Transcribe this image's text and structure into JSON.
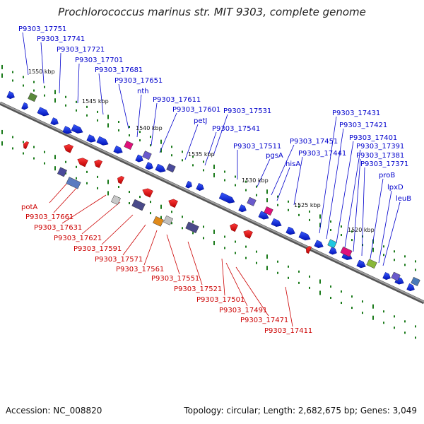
{
  "title": "Prochlorococcus marinus str. MIT 9303, complete genome",
  "accession_text": "Accession: NC_008820",
  "stats_text": "Topology: circular; Length: 2,682,675 bp; Genes: 3,049",
  "colors": {
    "forward_label": "#0000cc",
    "reverse_label": "#cc0000",
    "forward_gene": "#0a2ae8",
    "reverse_gene": "#e0001a",
    "backbone": "#8a8a8a",
    "tick_dots": "#1a7a1a"
  },
  "ticks": [
    "1550 kbp",
    "1545 kbp",
    "1540 kbp",
    "1535 kbp",
    "1530 kbp",
    "1525 kbp",
    "1520 kbp"
  ],
  "forward_labels": [
    "P9303_17751",
    "P9303_17741",
    "P9303_17721",
    "P9303_17701",
    "P9303_17681",
    "P9303_17651",
    "nth",
    "P9303_17611",
    "P9303_17601",
    "petJ",
    "P9303_17531",
    "P9303_17541",
    "P9303_17511",
    "pgsA",
    "P9303_17451",
    "hisA",
    "P9303_17441",
    "P9303_17431",
    "P9303_17421",
    "P9303_17401",
    "P9303_17391",
    "P9303_17381",
    "P9303_17371",
    "proB",
    "lpxD",
    "leuB"
  ],
  "reverse_labels": [
    "potA",
    "P9303_17661",
    "P9303_17631",
    "P9303_17621",
    "P9303_17591",
    "P9303_17571",
    "P9303_17561",
    "P9303_17551",
    "P9303_17521",
    "P9303_17501",
    "P9303_17491",
    "P9303_17471",
    "P9303_17411"
  ]
}
